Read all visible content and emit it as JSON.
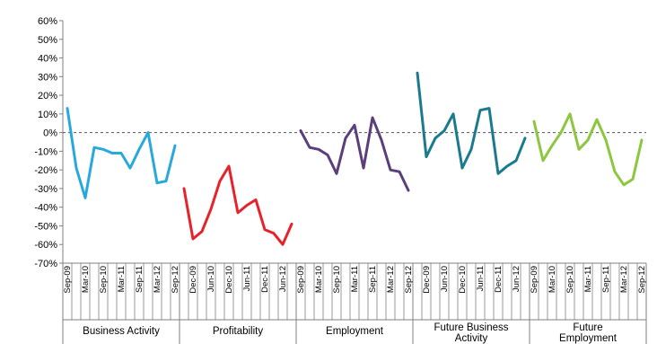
{
  "chart_data": {
    "type": "line",
    "title": "",
    "xlabel": "",
    "ylabel": "",
    "ylim": [
      -70,
      60
    ],
    "yticks": [
      "60%",
      "50%",
      "40%",
      "30%",
      "20%",
      "10%",
      "0%",
      "-10%",
      "-20%",
      "-30%",
      "-40%",
      "-50%",
      "-60%",
      "-70%"
    ],
    "zero_line": "dashed",
    "gridlines": false,
    "legend": "none",
    "series": [
      {
        "name": "Business Activity",
        "color": "#29a8e0",
        "tick_labels": [
          "Sep-09",
          "Mar-10",
          "Sep-10",
          "Mar-11",
          "Sep-11",
          "Mar-12",
          "Sep-12"
        ],
        "values": [
          13,
          -19,
          -35,
          -8,
          -9,
          -11,
          -11,
          -19,
          -9,
          0,
          -27,
          -26,
          -7
        ]
      },
      {
        "name": "Profitability",
        "color": "#e8222a",
        "tick_labels": [
          "Dec-09",
          "Jun-10",
          "Dec-10",
          "Jun-11",
          "Dec-11",
          "Jun-12"
        ],
        "values": [
          -30,
          -57,
          -53,
          -41,
          -26,
          -18,
          -43,
          -39,
          -36,
          -52,
          -54,
          -60,
          -49
        ]
      },
      {
        "name": "Employment",
        "color": "#5a3f7c",
        "tick_labels": [
          "Sep-09",
          "Mar-10",
          "Sep-10",
          "Mar-11",
          "Sep-11",
          "Mar-12",
          "Sep-12"
        ],
        "values": [
          1,
          -8,
          -9,
          -12,
          -22,
          -3,
          4,
          -19,
          8,
          -4,
          -20,
          -21,
          -31
        ]
      },
      {
        "name": "Future Business Activity",
        "color": "#1b7a8e",
        "tick_labels": [
          "Dec-09",
          "Jun-10",
          "Dec-10",
          "Jun-11",
          "Dec-11",
          "Jun-12"
        ],
        "values": [
          32,
          -13,
          -3,
          1,
          10,
          -19,
          -9,
          12,
          13,
          -22,
          -18,
          -15,
          -3
        ]
      },
      {
        "name": "Future Employment",
        "color": "#8dc63f",
        "tick_labels": [
          "Sep-09",
          "Mar-10",
          "Sep-10",
          "Mar-11",
          "Sep-11",
          "Mar-12",
          "Sep-12"
        ],
        "values": [
          6,
          -15,
          -7,
          0,
          10,
          -9,
          -4,
          7,
          -4,
          -21,
          -28,
          -25,
          -4
        ]
      }
    ],
    "group_labels": [
      [
        "Business Activity"
      ],
      [
        "Profitability"
      ],
      [
        "Employment"
      ],
      [
        "Future Business",
        "Activity"
      ],
      [
        "Future",
        "Employment"
      ]
    ]
  }
}
